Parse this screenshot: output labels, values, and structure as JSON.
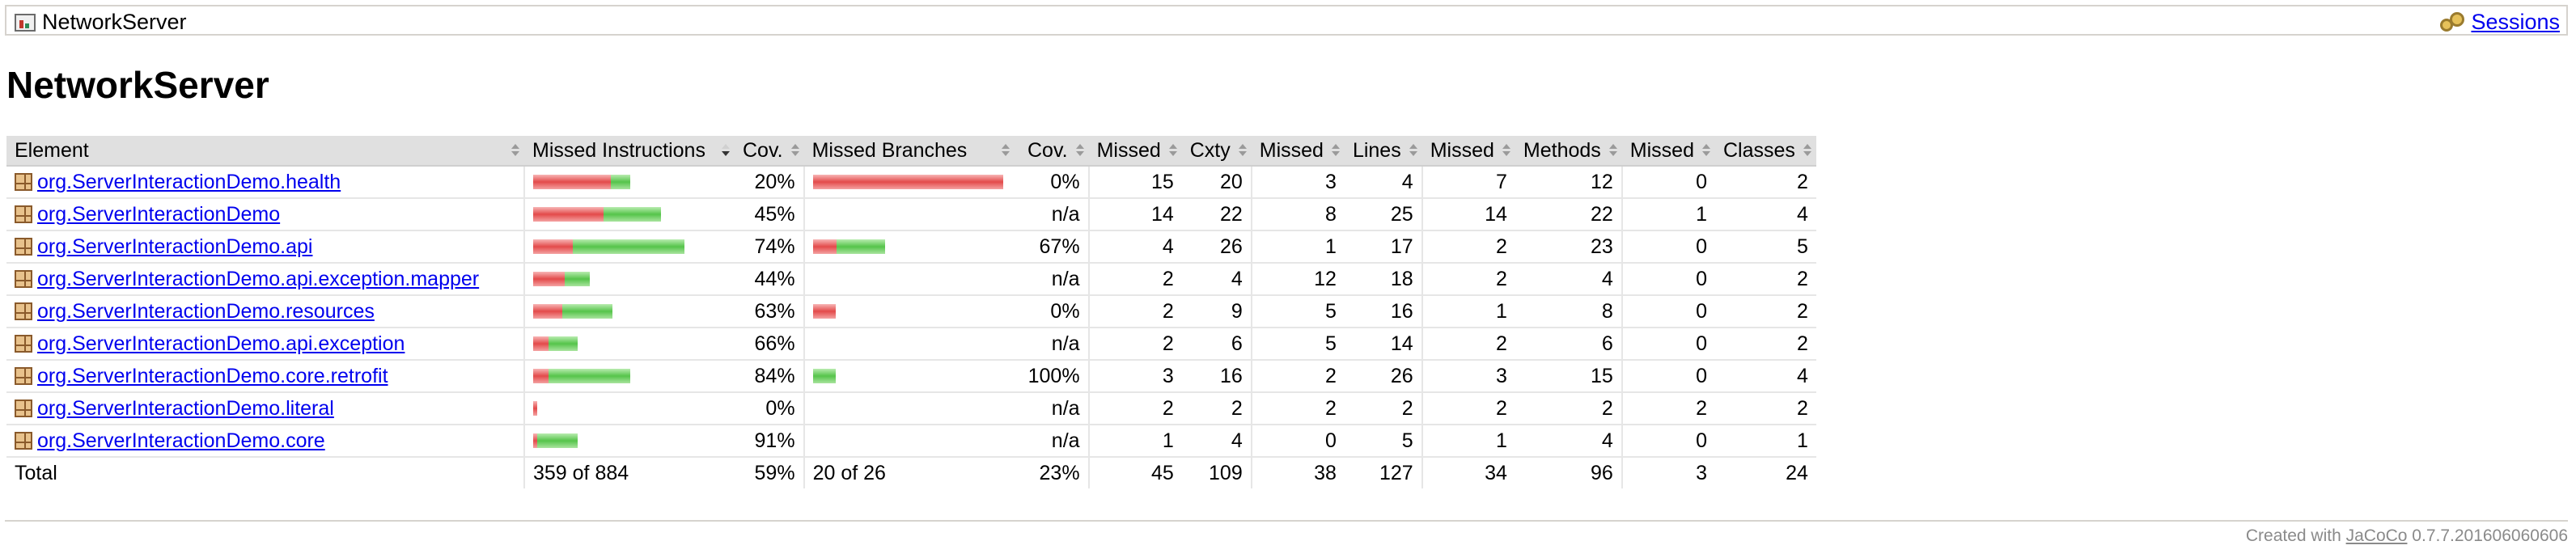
{
  "breadcrumb": {
    "title": "NetworkServer",
    "sessions_label": "Sessions"
  },
  "page_title": "NetworkServer",
  "table": {
    "headers": [
      "Element",
      "Missed Instructions",
      "Cov.",
      "Missed Branches",
      "Cov.",
      "Missed",
      "Cxty",
      "Missed",
      "Lines",
      "Missed",
      "Methods",
      "Missed",
      "Classes"
    ],
    "rows": [
      {
        "name": "org.ServerInteractionDemo.health",
        "instr_cov": "20%",
        "branch_cov": "0%",
        "missed_cxty": "15",
        "cxty": "20",
        "missed_lines": "3",
        "lines": "4",
        "missed_methods": "7",
        "methods": "12",
        "missed_classes": "0",
        "classes": "2",
        "instr_red": 0.8,
        "instr_green": 0.2,
        "branch_red": 1.0,
        "branch_green": 0.0
      },
      {
        "name": "org.ServerInteractionDemo",
        "instr_cov": "45%",
        "branch_cov": "n/a",
        "missed_cxty": "14",
        "cxty": "22",
        "missed_lines": "8",
        "lines": "25",
        "missed_methods": "14",
        "methods": "22",
        "missed_classes": "1",
        "classes": "4",
        "instr_red": 0.55,
        "instr_green": 0.45,
        "branch_red": 0,
        "branch_green": 0
      },
      {
        "name": "org.ServerInteractionDemo.api",
        "instr_cov": "74%",
        "branch_cov": "67%",
        "missed_cxty": "4",
        "cxty": "26",
        "missed_lines": "1",
        "lines": "17",
        "missed_methods": "2",
        "methods": "23",
        "missed_classes": "0",
        "classes": "5",
        "instr_red": 0.26,
        "instr_green": 0.74,
        "branch_red": 0.33,
        "branch_green": 0.67
      },
      {
        "name": "org.ServerInteractionDemo.api.exception.mapper",
        "instr_cov": "44%",
        "branch_cov": "n/a",
        "missed_cxty": "2",
        "cxty": "4",
        "missed_lines": "12",
        "lines": "18",
        "missed_methods": "2",
        "methods": "4",
        "missed_classes": "0",
        "classes": "2",
        "instr_red": 0.56,
        "instr_green": 0.44,
        "branch_red": 0,
        "branch_green": 0
      },
      {
        "name": "org.ServerInteractionDemo.resources",
        "instr_cov": "63%",
        "branch_cov": "0%",
        "missed_cxty": "2",
        "cxty": "9",
        "missed_lines": "5",
        "lines": "16",
        "missed_methods": "1",
        "methods": "8",
        "missed_classes": "0",
        "classes": "2",
        "instr_red": 0.37,
        "instr_green": 0.63,
        "branch_red": 1.0,
        "branch_green": 0.0
      },
      {
        "name": "org.ServerInteractionDemo.api.exception",
        "instr_cov": "66%",
        "branch_cov": "n/a",
        "missed_cxty": "2",
        "cxty": "6",
        "missed_lines": "5",
        "lines": "14",
        "missed_methods": "2",
        "methods": "6",
        "missed_classes": "0",
        "classes": "2",
        "instr_red": 0.34,
        "instr_green": 0.66,
        "branch_red": 0,
        "branch_green": 0
      },
      {
        "name": "org.ServerInteractionDemo.core.retrofit",
        "instr_cov": "84%",
        "branch_cov": "100%",
        "missed_cxty": "3",
        "cxty": "16",
        "missed_lines": "2",
        "lines": "26",
        "missed_methods": "3",
        "methods": "15",
        "missed_classes": "0",
        "classes": "4",
        "instr_red": 0.16,
        "instr_green": 0.84,
        "branch_red": 0.0,
        "branch_green": 1.0
      },
      {
        "name": "org.ServerInteractionDemo.literal",
        "instr_cov": "0%",
        "branch_cov": "n/a",
        "missed_cxty": "2",
        "cxty": "2",
        "missed_lines": "2",
        "lines": "2",
        "missed_methods": "2",
        "methods": "2",
        "missed_classes": "2",
        "classes": "2",
        "instr_red": 1.0,
        "instr_green": 0.0,
        "branch_red": 0,
        "branch_green": 0
      },
      {
        "name": "org.ServerInteractionDemo.core",
        "instr_cov": "91%",
        "branch_cov": "n/a",
        "missed_cxty": "1",
        "cxty": "4",
        "missed_lines": "0",
        "lines": "5",
        "missed_methods": "1",
        "methods": "4",
        "missed_classes": "0",
        "classes": "1",
        "instr_red": 0.09,
        "instr_green": 0.91,
        "branch_red": 0,
        "branch_green": 0
      }
    ],
    "total": {
      "label": "Total",
      "instr": "359 of 884",
      "instr_cov": "59%",
      "branch": "20 of 26",
      "branch_cov": "23%",
      "missed_cxty": "45",
      "cxty": "109",
      "missed_lines": "38",
      "lines": "127",
      "missed_methods": "34",
      "methods": "96",
      "missed_classes": "3",
      "classes": "24"
    }
  },
  "footer": {
    "prefix": "Created with ",
    "link": "JaCoCo",
    "version": " 0.7.7.201606060606"
  }
}
